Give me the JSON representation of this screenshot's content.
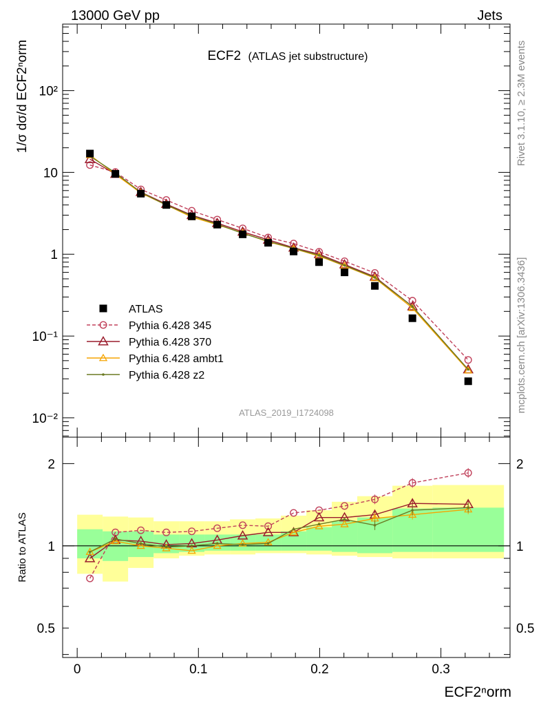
{
  "header": {
    "left": "13000 GeV pp",
    "right": "Jets"
  },
  "title": {
    "main": "ECF2",
    "sub": "(ATLAS jet substructure)"
  },
  "side_labels": {
    "top": "Rivet 3.1.10, ≥ 2.3M events",
    "bottom": "mcplots.cern.ch [arXiv:1306.3436]"
  },
  "analysis_label": "ATLAS_2019_I1724098",
  "axes": {
    "x_label": "ECF2ⁿorm",
    "y_label_top": "1/σ dσ/d ECF2ⁿorm",
    "y_label_ratio": "Ratio to ATLAS",
    "x_ticks": [
      "0",
      "0.1",
      "0.2",
      "0.3"
    ],
    "y_ticks_top": [
      "10⁻²",
      "10⁻¹",
      "1",
      "10",
      "10²"
    ],
    "y_ticks_ratio": [
      "0.5",
      "1",
      "2"
    ]
  },
  "legend": [
    {
      "label": "ATLAS"
    },
    {
      "label": "Pythia 6.428 345"
    },
    {
      "label": "Pythia 6.428 370"
    },
    {
      "label": "Pythia 6.428 ambt1"
    },
    {
      "label": "Pythia 6.428 z2"
    }
  ],
  "chart_data": {
    "type": "line",
    "x_scale": "linear",
    "y_scale": "log",
    "xlim": [
      -0.012,
      0.357
    ],
    "ylim": [
      0.0058,
      650
    ],
    "ratio_ylim": [
      0.39,
      2.5
    ],
    "x": [
      0.0105,
      0.0315,
      0.0525,
      0.0735,
      0.0945,
      0.1155,
      0.1365,
      0.1575,
      0.1785,
      0.1995,
      0.2205,
      0.2455,
      0.2765,
      0.3225
    ],
    "bin_edges": [
      0.0,
      0.021,
      0.042,
      0.063,
      0.084,
      0.105,
      0.126,
      0.147,
      0.168,
      0.189,
      0.21,
      0.231,
      0.26,
      0.293,
      0.352
    ],
    "data": {
      "name": "ATLAS",
      "values": [
        17.0,
        9.6,
        5.5,
        4.0,
        2.9,
        2.3,
        1.75,
        1.38,
        1.08,
        0.8,
        0.6,
        0.41,
        0.165,
        0.028
      ],
      "band_inner": [
        [
          0.9,
          1.15
        ],
        [
          0.88,
          1.13
        ],
        [
          0.91,
          1.13
        ],
        [
          0.94,
          1.1
        ],
        [
          0.95,
          1.1
        ],
        [
          0.96,
          1.1
        ],
        [
          0.96,
          1.1
        ],
        [
          0.96,
          1.1
        ],
        [
          0.96,
          1.13
        ],
        [
          0.96,
          1.17
        ],
        [
          0.95,
          1.23
        ],
        [
          0.94,
          1.27
        ],
        [
          0.95,
          1.37
        ],
        [
          0.95,
          1.38
        ]
      ],
      "band_outer": [
        [
          0.79,
          1.3
        ],
        [
          0.74,
          1.28
        ],
        [
          0.83,
          1.27
        ],
        [
          0.9,
          1.23
        ],
        [
          0.92,
          1.23
        ],
        [
          0.93,
          1.23
        ],
        [
          0.93,
          1.25
        ],
        [
          0.94,
          1.26
        ],
        [
          0.94,
          1.29
        ],
        [
          0.93,
          1.35
        ],
        [
          0.92,
          1.45
        ],
        [
          0.91,
          1.52
        ],
        [
          0.9,
          1.66
        ],
        [
          0.9,
          1.67
        ]
      ]
    },
    "series": [
      {
        "name": "Pythia 6.428 345",
        "color": "#c0405a",
        "style": "dashed",
        "marker": "circle-open",
        "values": [
          12.3,
          10.1,
          6.2,
          4.6,
          3.4,
          2.65,
          2.07,
          1.6,
          1.35,
          1.07,
          0.82,
          0.59,
          0.27,
          0.051
        ],
        "ratio": [
          0.76,
          1.12,
          1.14,
          1.12,
          1.13,
          1.16,
          1.19,
          1.18,
          1.32,
          1.35,
          1.4,
          1.48,
          1.7,
          1.85
        ]
      },
      {
        "name": "Pythia 6.428 370",
        "color": "#9a1c2c",
        "style": "solid",
        "marker": "triangle-open",
        "values": [
          14.5,
          9.55,
          5.75,
          4.1,
          3.0,
          2.4,
          1.88,
          1.5,
          1.2,
          1.0,
          0.75,
          0.53,
          0.23,
          0.039
        ],
        "ratio": [
          0.9,
          1.05,
          1.04,
          1.01,
          1.02,
          1.05,
          1.09,
          1.12,
          1.12,
          1.27,
          1.27,
          1.3,
          1.43,
          1.42
        ]
      },
      {
        "name": "Pythia 6.428 ambt1",
        "color": "#f5a400",
        "style": "solid",
        "marker": "triangle-open-small",
        "values": [
          16.3,
          9.5,
          5.6,
          4.0,
          2.85,
          2.3,
          1.82,
          1.42,
          1.17,
          0.95,
          0.72,
          0.51,
          0.22,
          0.038
        ],
        "ratio": [
          0.95,
          1.04,
          1.0,
          0.98,
          0.96,
          1.0,
          1.02,
          1.03,
          1.12,
          1.18,
          1.2,
          1.26,
          1.3,
          1.36
        ]
      },
      {
        "name": "Pythia 6.428 z2",
        "color": "#6b7a22",
        "style": "solid",
        "marker": "dot",
        "values": [
          15.8,
          9.9,
          5.7,
          4.0,
          2.95,
          2.33,
          1.8,
          1.44,
          1.18,
          0.97,
          0.73,
          0.52,
          0.23,
          0.039
        ],
        "ratio": [
          0.95,
          1.06,
          1.02,
          0.99,
          1.0,
          1.02,
          1.01,
          1.02,
          1.15,
          1.2,
          1.25,
          1.19,
          1.35,
          1.38
        ]
      }
    ]
  }
}
